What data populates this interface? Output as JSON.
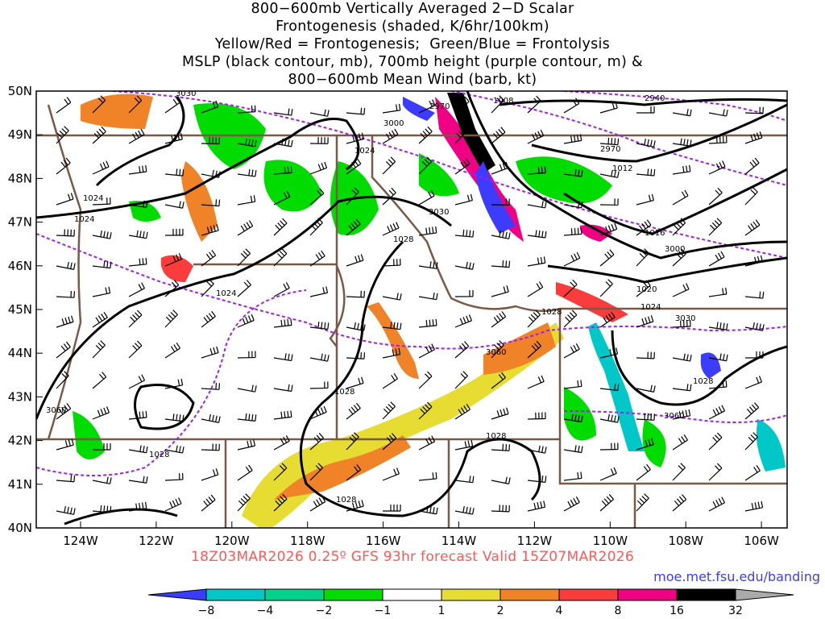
{
  "title_lines": [
    "800−600mb Vertically Averaged 2−D Scalar",
    "Frontogenesis (shaded, K/6hr/100km)",
    "Yellow/Red = Frontogenesis;  Green/Blue = Frontolysis",
    "MSLP (black contour, mb), 700mb height (purple contour, m) &",
    "800−600mb Mean Wind (barb, kt)"
  ],
  "map": {
    "lat_labels": [
      "50N",
      "49N",
      "48N",
      "47N",
      "46N",
      "45N",
      "44N",
      "43N",
      "42N",
      "41N",
      "40N"
    ],
    "lon_labels": [
      "124W",
      "122W",
      "120W",
      "118W",
      "116W",
      "114W",
      "112W",
      "110W",
      "108W",
      "106W"
    ],
    "mslp_labels": [
      "1008",
      "1012",
      "1016",
      "1020",
      "1024",
      "1024",
      "1024",
      "1024",
      "1024",
      "1028",
      "1028",
      "1028",
      "1028",
      "1028",
      "1028",
      "1028"
    ],
    "height_labels": [
      "2940",
      "2970",
      "2970",
      "3000",
      "3000",
      "3030",
      "3030",
      "3030",
      "3060",
      "3060",
      "3060"
    ]
  },
  "footer": {
    "valid_text": "18Z03MAR2026 0.25º GFS 93hr forecast Valid 15Z07MAR2026",
    "url": "moe.met.fsu.edu/banding"
  },
  "colorbar": {
    "labels": [
      "−8",
      "−4",
      "−2",
      "−1",
      "1",
      "2",
      "4",
      "8",
      "16",
      "32"
    ],
    "colors": [
      "#3c3cff",
      "#00c8c8",
      "#00d28c",
      "#00dc00",
      "#ffffff",
      "#e6dc32",
      "#f08228",
      "#fa3c3c",
      "#f00082",
      "#000000",
      "#aaaaaa"
    ]
  }
}
